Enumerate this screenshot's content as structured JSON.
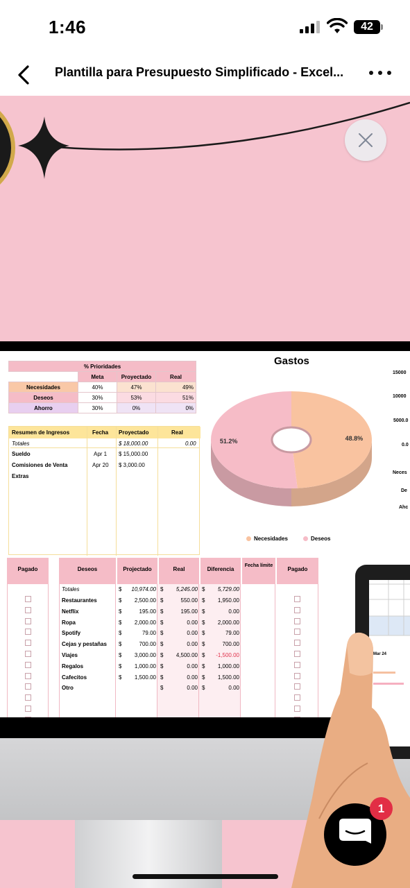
{
  "status_bar": {
    "time": "1:46",
    "battery": "42"
  },
  "nav": {
    "title": "Plantilla para Presupuesto Simplificado - Excel..."
  },
  "priorities": {
    "title": "% Prioridades",
    "headers": [
      "Meta",
      "Proyectado",
      "Real"
    ],
    "rows": [
      {
        "label": "Necesidades",
        "meta": "40%",
        "proyectado": "47%",
        "real": "49%"
      },
      {
        "label": "Deseos",
        "meta": "30%",
        "proyectado": "53%",
        "real": "51%"
      },
      {
        "label": "Ahorro",
        "meta": "30%",
        "proyectado": "0%",
        "real": "0%"
      }
    ]
  },
  "income": {
    "headers": [
      "Resumen de Ingresos",
      "Fecha",
      "Proyectado",
      "Real"
    ],
    "totals_label": "Totales",
    "totals_proj": "$ 18,000.00",
    "totals_real": "0.00",
    "rows": [
      {
        "label": "Sueldo",
        "fecha": "Apr 1",
        "proj": "$ 15,000.00"
      },
      {
        "label": "Comisiones de Venta",
        "fecha": "Apr 20",
        "proj": "$ 3,000.00"
      },
      {
        "label": "Extras",
        "fecha": "",
        "proj": ""
      }
    ]
  },
  "chart_data": {
    "type": "pie",
    "title": "Gastos",
    "categories": [
      "Necesidades",
      "Deseos"
    ],
    "values": [
      48.8,
      51.2
    ],
    "labels": [
      "48.8%",
      "51.2%"
    ],
    "colors": [
      "#f9c3a0",
      "#f6bcc7"
    ],
    "legend": "bottom"
  },
  "side_axis": [
    "15000",
    "10000",
    "5000.0",
    "0.0",
    "Neces",
    "De",
    "Ahc"
  ],
  "wishes": {
    "left_paid_header": "Pagado",
    "headers": [
      "Deseos",
      "Projectado",
      "Real",
      "Diferencia",
      "Fecha límite",
      "Pagado"
    ],
    "totals": {
      "label": "Totales",
      "proj": "10,974.00",
      "real": "5,245.00",
      "diff": "5,729.00"
    },
    "rows": [
      {
        "label": "Restaurantes",
        "proj": "2,500.00",
        "real": "550.00",
        "diff": "1,950.00"
      },
      {
        "label": "Netflix",
        "proj": "195.00",
        "real": "195.00",
        "diff": "0.00"
      },
      {
        "label": "Ropa",
        "proj": "2,000.00",
        "real": "0.00",
        "diff": "2,000.00"
      },
      {
        "label": "Spotify",
        "proj": "79.00",
        "real": "0.00",
        "diff": "79.00"
      },
      {
        "label": "Cejas y pestañas",
        "proj": "700.00",
        "real": "0.00",
        "diff": "700.00"
      },
      {
        "label": "Viajes",
        "proj": "3,000.00",
        "real": "4,500.00",
        "diff": "-1,500.00"
      },
      {
        "label": "Regalos",
        "proj": "1,000.00",
        "real": "0.00",
        "diff": "1,000.00"
      },
      {
        "label": "Cafecitos",
        "proj": "1,500.00",
        "real": "0.00",
        "diff": "1,500.00"
      },
      {
        "label": "Otro",
        "proj": "",
        "real": "0.00",
        "diff": "0.00"
      }
    ],
    "currency": "$"
  },
  "tablet": {
    "label": "Mar 24"
  },
  "chat": {
    "badge": "1"
  },
  "colors": {
    "pink_bg": "#f6c4cf",
    "negative": "#e0314b"
  }
}
